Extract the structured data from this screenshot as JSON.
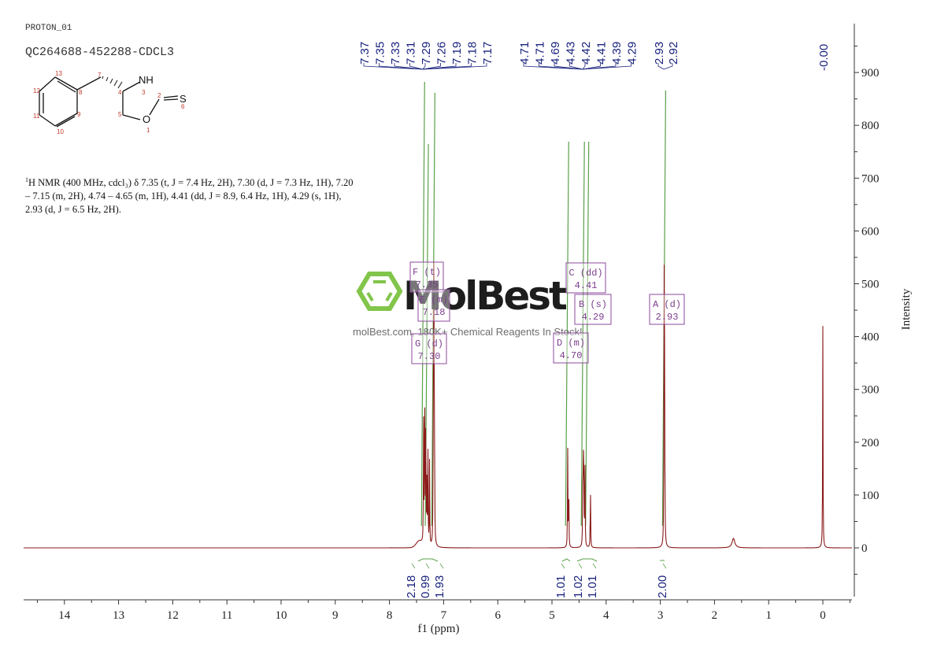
{
  "header": {
    "experiment": "PROTON_01",
    "sample_id": "QC264688-452288-CDCL3"
  },
  "structure": {
    "atoms": [
      "1",
      "2",
      "3",
      "4",
      "5",
      "6",
      "7",
      "8",
      "9",
      "10",
      "11",
      "12",
      "13"
    ],
    "labels": {
      "NH": "NH",
      "O": "O",
      "S": "S"
    }
  },
  "nmr_description": {
    "prefix_sup": "1",
    "text": "H NMR (400 MHz, cdcl₃) δ 7.35 (t, J = 7.4 Hz, 2H), 7.30 (d, J = 7.3 Hz, 1H), 7.20 – 7.15 (m, 2H), 4.74 – 4.65 (m, 1H), 4.41 (dd, J = 8.9, 6.4 Hz, 1H), 4.29 (s, 1H), 2.93 (d, J = 6.5 Hz, 2H)."
  },
  "watermark": {
    "brand": "MolBest",
    "tagline": "molBest.com, 180K+ Chemical Reagents In Stock!"
  },
  "chart_data": {
    "type": "line",
    "title": "PROTON_01 QC264688-452288-CDCL3",
    "xlabel": "f1 (ppm)",
    "ylabel": "Intensity",
    "xlim": [
      14.6,
      -0.5
    ],
    "ylim": [
      -90,
      990
    ],
    "x_ticks": [
      14,
      13,
      12,
      11,
      10,
      9,
      8,
      7,
      6,
      5,
      4,
      3,
      2,
      1,
      0
    ],
    "y_ticks": [
      0,
      100,
      200,
      300,
      400,
      500,
      600,
      700,
      800,
      900
    ],
    "grid": false,
    "peak_labels_group1": [
      "7.37",
      "7.35",
      "7.33",
      "7.31",
      "7.29",
      "7.26",
      "7.19",
      "7.18",
      "7.17"
    ],
    "peak_labels_group2": [
      "4.71",
      "4.71",
      "4.69",
      "4.43",
      "4.42",
      "4.41",
      "4.39",
      "4.29"
    ],
    "peak_labels_group3": [
      "2.93",
      "2.92"
    ],
    "peak_labels_group4": [
      "-0.00"
    ],
    "peaks": [
      {
        "ppm": 7.37,
        "intensity": 235
      },
      {
        "ppm": 7.35,
        "intensity": 340
      },
      {
        "ppm": 7.33,
        "intensity": 300
      },
      {
        "ppm": 7.31,
        "intensity": 120
      },
      {
        "ppm": 7.29,
        "intensity": 180
      },
      {
        "ppm": 7.26,
        "intensity": 160
      },
      {
        "ppm": 7.19,
        "intensity": 330
      },
      {
        "ppm": 7.18,
        "intensity": 455
      },
      {
        "ppm": 7.17,
        "intensity": 300
      },
      {
        "ppm": 4.71,
        "intensity": 190
      },
      {
        "ppm": 4.69,
        "intensity": 120
      },
      {
        "ppm": 4.43,
        "intensity": 170
      },
      {
        "ppm": 4.42,
        "intensity": 160
      },
      {
        "ppm": 4.41,
        "intensity": 120
      },
      {
        "ppm": 4.39,
        "intensity": 150
      },
      {
        "ppm": 4.29,
        "intensity": 130
      },
      {
        "ppm": 2.93,
        "intensity": 520
      },
      {
        "ppm": 2.92,
        "intensity": 350
      },
      {
        "ppm": 1.65,
        "intensity": 18
      },
      {
        "ppm": 0.0,
        "intensity": 420
      }
    ],
    "multiplets": [
      {
        "label": "F (t)",
        "shift": "7.35"
      },
      {
        "label": "E (m)",
        "shift": "7.18"
      },
      {
        "label": "G (d)",
        "shift": "7.30"
      },
      {
        "label": "C (dd)",
        "shift": "4.41"
      },
      {
        "label": "B (s)",
        "shift": "4.29"
      },
      {
        "label": "D (m)",
        "shift": "4.70"
      },
      {
        "label": "A (d)",
        "shift": "2.93"
      }
    ],
    "integrals": [
      {
        "range": [
          7.4,
          7.33
        ],
        "value": "2.18"
      },
      {
        "range": [
          7.32,
          7.28
        ],
        "value": "0.99"
      },
      {
        "range": [
          7.22,
          7.14
        ],
        "value": "1.93"
      },
      {
        "range": [
          4.74,
          4.65
        ],
        "value": "1.01"
      },
      {
        "range": [
          4.45,
          4.37
        ],
        "value": "1.02"
      },
      {
        "range": [
          4.32,
          4.26
        ],
        "value": "1.01"
      },
      {
        "range": [
          2.96,
          2.9
        ],
        "value": "2.00"
      }
    ]
  }
}
